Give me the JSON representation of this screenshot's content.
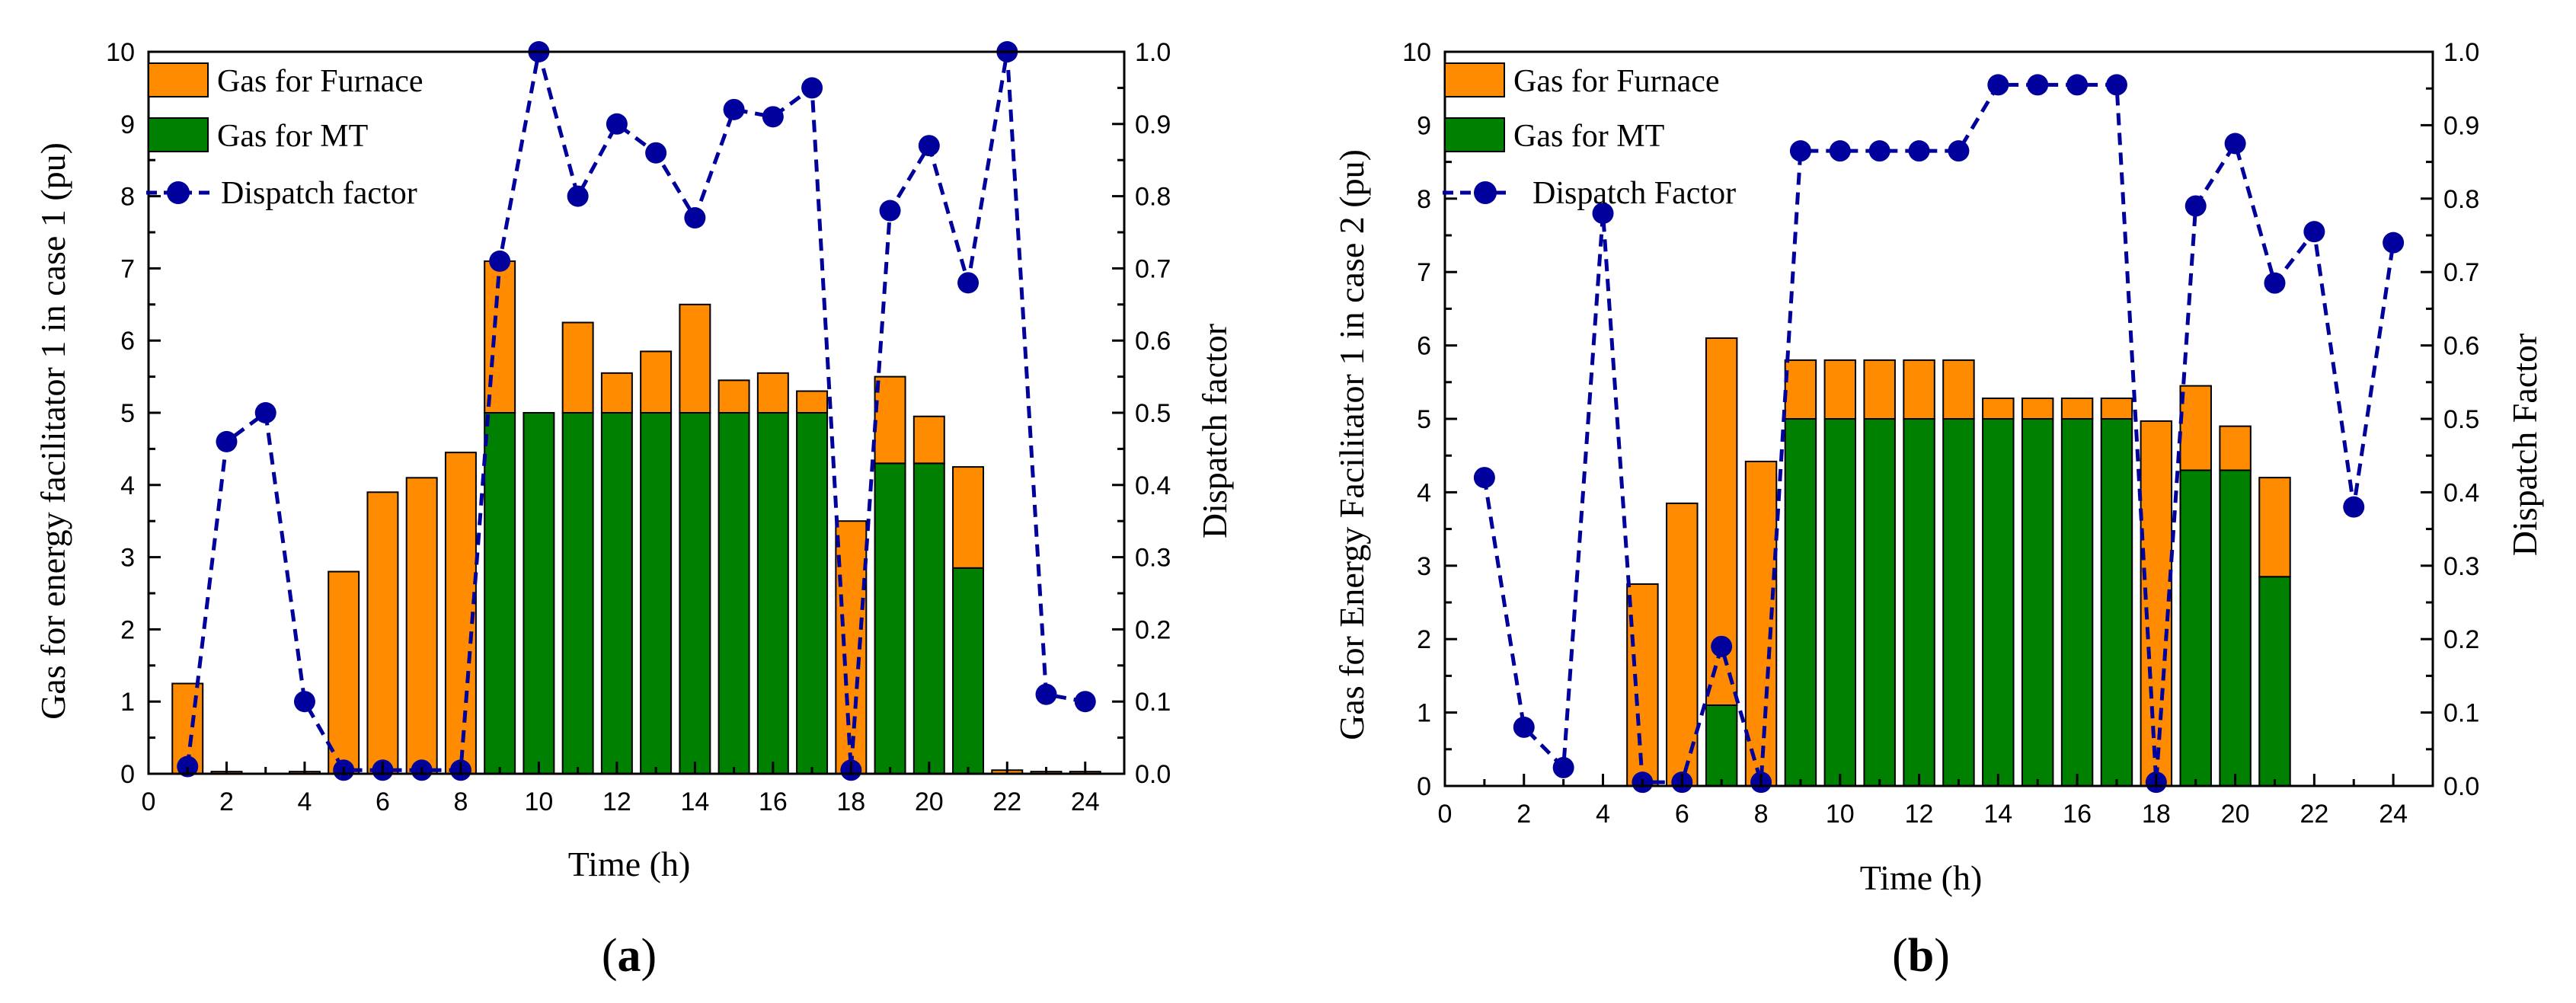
{
  "colors": {
    "furnace": "#FF8C00",
    "mt": "#008000",
    "dispatch": "#00009C",
    "axis": "#000000"
  },
  "chart_data": [
    {
      "type": "bar",
      "panel_label": {
        "open": "(",
        "letter": "a",
        "close": ")"
      },
      "xlabel": "Time (h)",
      "ylabel": "Gas for energy facilitator 1 in case 1 (pu)",
      "y2label": "Dispatch factor",
      "xlim": [
        0,
        25
      ],
      "ylim": [
        0,
        10
      ],
      "y2lim": [
        0,
        1.0
      ],
      "xticks": [
        "0",
        "2",
        "4",
        "6",
        "8",
        "10",
        "12",
        "14",
        "16",
        "18",
        "20",
        "22",
        "24"
      ],
      "yticks": [
        "0",
        "1",
        "2",
        "3",
        "4",
        "5",
        "6",
        "7",
        "8",
        "9",
        "10"
      ],
      "y2ticks": [
        "0.0",
        "0.1",
        "0.2",
        "0.3",
        "0.4",
        "0.5",
        "0.6",
        "0.7",
        "0.8",
        "0.9",
        "1.0"
      ],
      "legend_position": "top-left",
      "x": [
        1,
        2,
        3,
        4,
        5,
        6,
        7,
        8,
        9,
        10,
        11,
        12,
        13,
        14,
        15,
        16,
        17,
        18,
        19,
        20,
        21,
        22,
        23,
        24
      ],
      "series": [
        {
          "name": "Gas for MT",
          "kind": "stacked-bar",
          "values": [
            0,
            0,
            0,
            0,
            0,
            0,
            0,
            0,
            5.0,
            5.0,
            5.0,
            5.0,
            5.0,
            5.0,
            5.0,
            5.0,
            5.0,
            0,
            4.3,
            4.3,
            2.85,
            0,
            0,
            0
          ]
        },
        {
          "name": "Gas for Furnace",
          "kind": "stacked-bar",
          "values": [
            1.25,
            0.03,
            0,
            0.03,
            2.8,
            3.9,
            4.1,
            4.45,
            2.1,
            0,
            1.25,
            0.55,
            0.85,
            1.5,
            0.45,
            0.55,
            0.3,
            3.5,
            1.2,
            0.65,
            1.4,
            0.05,
            0.03,
            0.03
          ]
        },
        {
          "name": "Dispatch factor",
          "kind": "line-markers",
          "axis": "right",
          "values": [
            0.01,
            0.46,
            0.5,
            0.1,
            0.005,
            0.005,
            0.005,
            0.005,
            0.71,
            1.0,
            0.8,
            0.9,
            0.86,
            0.77,
            0.92,
            0.91,
            0.95,
            0.005,
            0.78,
            0.87,
            0.68,
            1.0,
            0.11,
            0.1
          ]
        }
      ],
      "legend": [
        "Gas for Furnace",
        "Gas for MT",
        "Dispatch factor"
      ]
    },
    {
      "type": "bar",
      "panel_label": {
        "open": "(",
        "letter": "b",
        "close": ")"
      },
      "xlabel": "Time (h)",
      "ylabel": "Gas for Energy Facilitator 1 in case 2 (pu)",
      "y2label": "Dispatch Factor",
      "xlim": [
        0,
        25
      ],
      "ylim": [
        0,
        10
      ],
      "y2lim": [
        0,
        1.0
      ],
      "xticks": [
        "0",
        "2",
        "4",
        "6",
        "8",
        "10",
        "12",
        "14",
        "16",
        "18",
        "20",
        "22",
        "24"
      ],
      "yticks": [
        "0",
        "1",
        "2",
        "3",
        "4",
        "5",
        "6",
        "7",
        "8",
        "9",
        "10"
      ],
      "y2ticks": [
        "0.0",
        "0.1",
        "0.2",
        "0.3",
        "0.4",
        "0.5",
        "0.6",
        "0.7",
        "0.8",
        "0.9",
        "1.0"
      ],
      "legend_position": "top-left",
      "x": [
        1,
        2,
        3,
        4,
        5,
        6,
        7,
        8,
        9,
        10,
        11,
        12,
        13,
        14,
        15,
        16,
        17,
        18,
        19,
        20,
        21,
        22,
        23,
        24
      ],
      "series": [
        {
          "name": "Gas for MT",
          "kind": "stacked-bar",
          "values": [
            0,
            0,
            0,
            0,
            0,
            0,
            1.1,
            0,
            5.0,
            5.0,
            5.0,
            5.0,
            5.0,
            5.0,
            5.0,
            5.0,
            5.0,
            0,
            4.3,
            4.3,
            2.85,
            0,
            0,
            0
          ]
        },
        {
          "name": "Gas for Furnace",
          "kind": "stacked-bar",
          "values": [
            0,
            0,
            0,
            0,
            2.75,
            3.85,
            5.0,
            4.42,
            0.8,
            0.8,
            0.8,
            0.8,
            0.8,
            0.28,
            0.28,
            0.28,
            0.28,
            4.97,
            1.15,
            0.6,
            1.35,
            0,
            0,
            0
          ]
        },
        {
          "name": "Dispatch Factor",
          "kind": "line-markers",
          "axis": "right",
          "values": [
            0.42,
            0.08,
            0.025,
            0.78,
            0.005,
            0.005,
            0.19,
            0.005,
            0.865,
            0.865,
            0.865,
            0.865,
            0.865,
            0.955,
            0.955,
            0.955,
            0.955,
            0.005,
            0.79,
            0.875,
            0.685,
            0.755,
            0.38,
            0.74
          ]
        }
      ],
      "legend": [
        "Gas for Furnace",
        "Gas for MT",
        "Dispatch Factor"
      ]
    }
  ]
}
